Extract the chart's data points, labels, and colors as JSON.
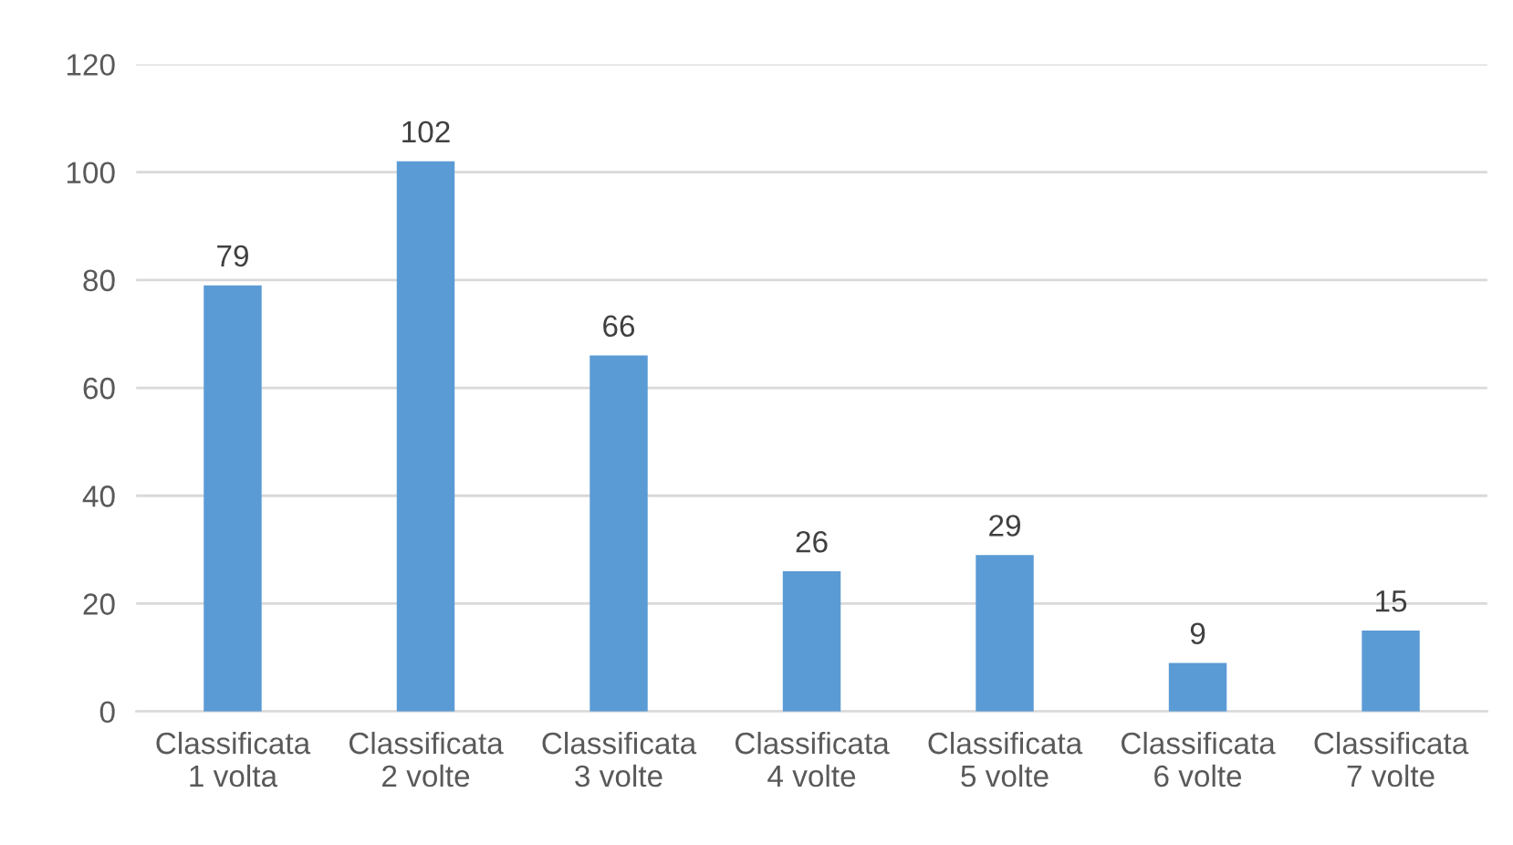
{
  "chart_data": {
    "type": "bar",
    "categories": [
      "Classificata\n1 volta",
      "Classificata\n2 volte",
      "Classificata\n3 volte",
      "Classificata\n4 volte",
      "Classificata\n5 volte",
      "Classificata\n6 volte",
      "Classificata\n7 volte"
    ],
    "values": [
      79,
      102,
      66,
      26,
      29,
      9,
      15
    ],
    "color": "#5b9bd5",
    "ylim": [
      0,
      120
    ],
    "yticks": [
      0,
      20,
      40,
      60,
      80,
      100,
      120
    ],
    "grid": "y",
    "data_labels": true,
    "legend": false
  }
}
